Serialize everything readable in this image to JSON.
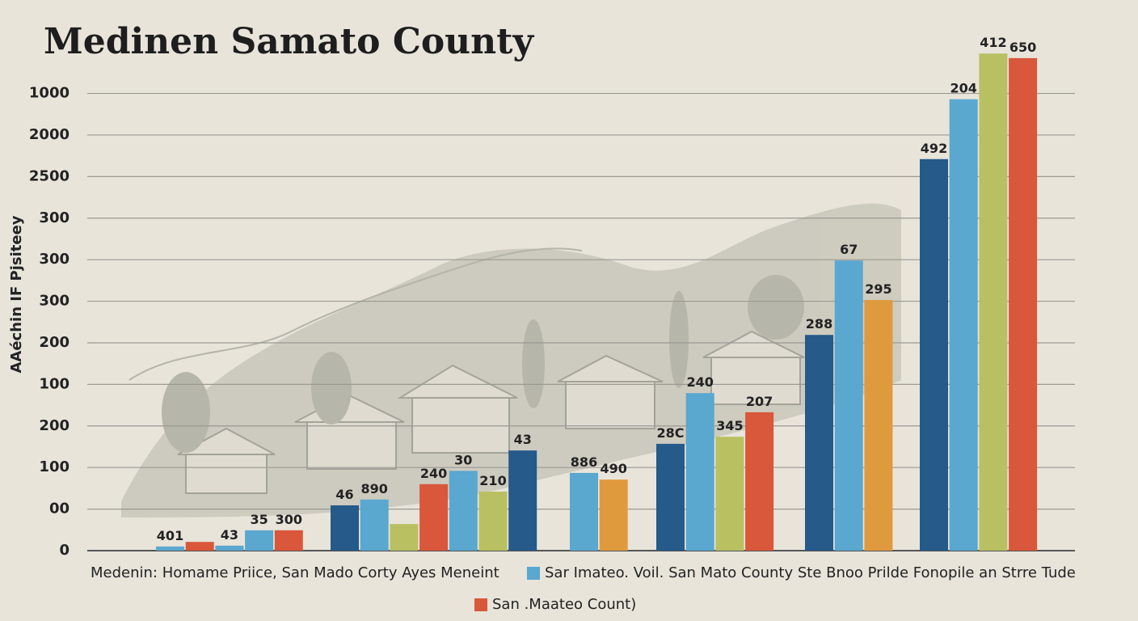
{
  "chart_data": {
    "type": "bar",
    "title": "Medinen Samato County",
    "y_label": "AAéchin IF Pjsiteey",
    "ylim": [
      0,
      12.1
    ],
    "yticks": [
      {
        "value": 0,
        "label": "0"
      },
      {
        "value": 1,
        "label": "00"
      },
      {
        "value": 2,
        "label": "100"
      },
      {
        "value": 3,
        "label": "200"
      },
      {
        "value": 4,
        "label": "100"
      },
      {
        "value": 5,
        "label": "200"
      },
      {
        "value": 6,
        "label": "300"
      },
      {
        "value": 7,
        "label": "300"
      },
      {
        "value": 8,
        "label": "300"
      },
      {
        "value": 9,
        "label": "2500"
      },
      {
        "value": 10,
        "label": "2000"
      },
      {
        "value": 11,
        "label": "1000"
      }
    ],
    "grid": true,
    "groups": [
      {
        "values": [
          0.1,
          0.21,
          0.12,
          0.49,
          0.49
        ],
        "value_labels": [
          "401",
          null,
          "43",
          "35",
          "300"
        ],
        "colors": [
          "#5aa7cf",
          "#d9573a",
          "#5aa7cf",
          "#5aa7cf",
          "#d9573a"
        ]
      },
      {
        "values": [
          1.09,
          1.23,
          0.64,
          1.6,
          1.92,
          1.42,
          2.41
        ],
        "value_labels": [
          "46",
          "890",
          null,
          "240",
          "30",
          "210",
          "43"
        ],
        "colors": [
          "#255a8a",
          "#5aa7cf",
          "#b9c062",
          "#d9573a",
          "#5aa7cf",
          "#b9c062",
          "#255a8a"
        ]
      },
      {
        "values": [
          1.87,
          1.71
        ],
        "value_labels": [
          "886",
          "490"
        ],
        "colors": [
          "#5aa7cf",
          "#e09a3e"
        ]
      },
      {
        "values": [
          2.57,
          3.79,
          2.74,
          3.33
        ],
        "value_labels": [
          "28C",
          "240",
          "345",
          "207"
        ],
        "colors": [
          "#255a8a",
          "#5aa7cf",
          "#b9c062",
          "#d9573a"
        ]
      },
      {
        "values": [
          5.19,
          6.98,
          6.03
        ],
        "value_labels": [
          "288",
          "67",
          "295"
        ],
        "colors": [
          "#255a8a",
          "#5aa7cf",
          "#e09a3e"
        ]
      },
      {
        "values": [
          9.42,
          10.86,
          11.96,
          11.85
        ],
        "value_labels": [
          "492",
          "204",
          "412",
          "650"
        ],
        "colors": [
          "#255a8a",
          "#5aa7cf",
          "#b9c062",
          "#d9573a"
        ]
      }
    ],
    "legend_intro": "Medenin:  Homame  Priice,  San   Mado  Corty   Ayes  Meneint",
    "legend": [
      {
        "name": "Sar  Imateo.  Voil.  San  Mato  County   Ste  Bnoo  Prilde  Fonopile  an  Strre Tude",
        "color": "#5aa7cf"
      },
      {
        "name": "San .Maateo  Count)",
        "color": "#d9573a"
      }
    ]
  }
}
